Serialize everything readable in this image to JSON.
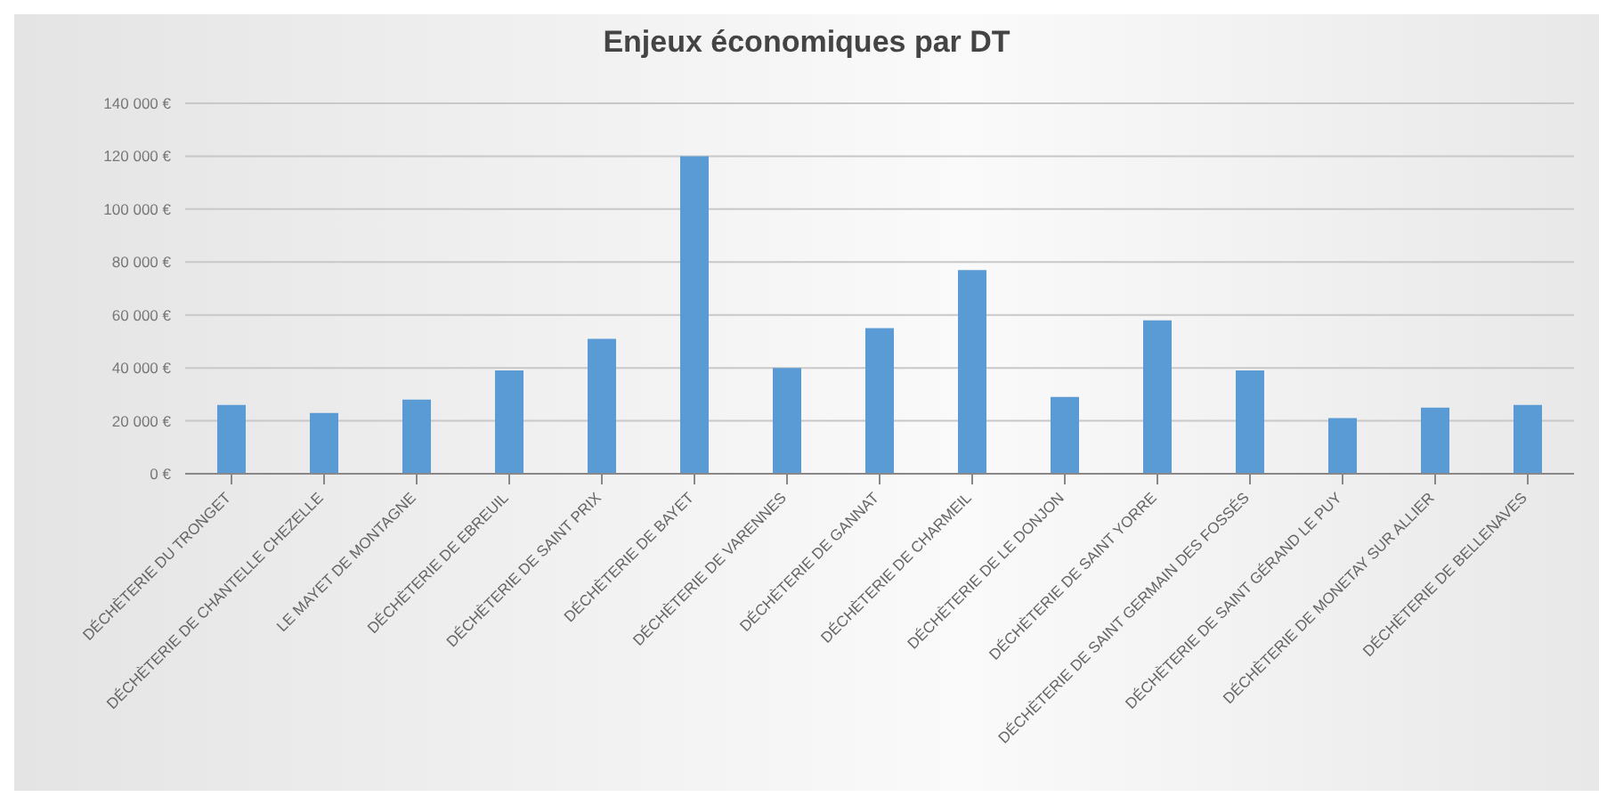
{
  "chart_data": {
    "type": "bar",
    "title": "Enjeux économiques par DT",
    "categories": [
      "DÉCHÈTERIE DU TRONGET",
      "DÉCHÈTERIE DE CHANTELLE CHEZELLE",
      "LE MAYET DE MONTAGNE",
      "DÉCHÈTERIE DE EBREUIL",
      "DÉCHÈTERIE DE SAINT PRIX",
      "DÉCHÈTERIE DE BAYET",
      "DÉCHÈTERIE DE VARENNES",
      "DÉCHÈTERIE DE GANNAT",
      "DÉCHÈTERIE DE CHARMEIL",
      "DÉCHÈTERIE DE LE DONJON",
      "DÉCHÈTERIE DE SAINT YORRE",
      "DÉCHÈTERIE DE SAINT GERMAIN DES FOSSÉS",
      "DÉCHÈTERIE DE SAINT GÉRAND LE PUY",
      "DÉCHÈTERIE DE MONETAY SUR ALLIER",
      "DÉCHÈTERIE DE BELLENAVES"
    ],
    "values": [
      26000,
      23000,
      28000,
      39000,
      51000,
      120000,
      40000,
      55000,
      77000,
      29000,
      58000,
      39000,
      21000,
      25000,
      26000
    ],
    "color": "#5b9bd5",
    "ylim": [
      0,
      140000
    ],
    "yticks": [
      {
        "value": 0,
        "label": "0 €"
      },
      {
        "value": 20000,
        "label": "20 000 €"
      },
      {
        "value": 40000,
        "label": "40 000 €"
      },
      {
        "value": 60000,
        "label": "60 000 €"
      },
      {
        "value": 80000,
        "label": "80 000 €"
      },
      {
        "value": 100000,
        "label": "100 000 €"
      },
      {
        "value": 120000,
        "label": "120 000 €"
      },
      {
        "value": 140000,
        "label": "140 000 €"
      }
    ],
    "grid": "y"
  }
}
